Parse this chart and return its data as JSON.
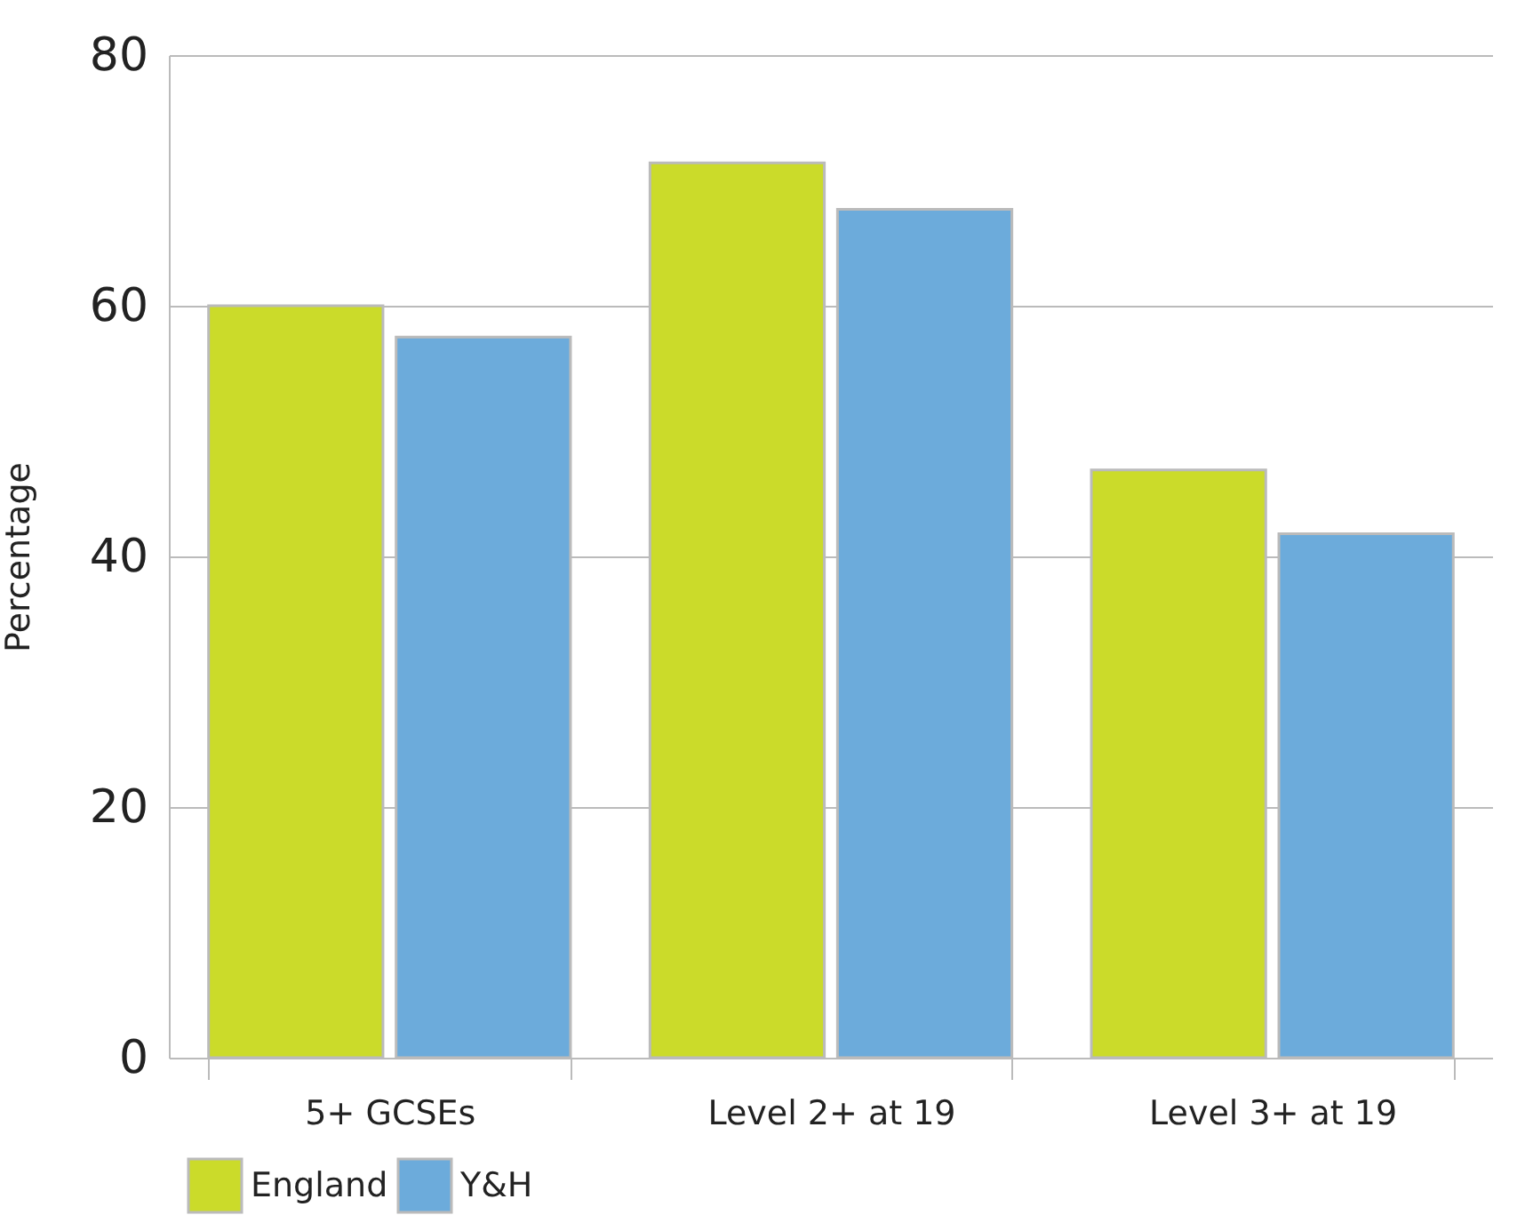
{
  "chart_data": {
    "type": "bar",
    "ylabel": "Percentage",
    "categories": [
      "5+ GCSEs",
      "Level 2+ at 19",
      "Level 3+ at 19"
    ],
    "series": [
      {
        "name": "England",
        "color": "#cbdb2a",
        "values": [
          60,
          71.4,
          46.9
        ]
      },
      {
        "name": "Y&H",
        "color": "#6cabdb",
        "values": [
          57.5,
          67.7,
          41.8
        ]
      }
    ],
    "ylim": [
      0,
      80
    ],
    "yticks": [
      0,
      20,
      40,
      60,
      80
    ],
    "grid": "y",
    "legend": "bottom left"
  }
}
